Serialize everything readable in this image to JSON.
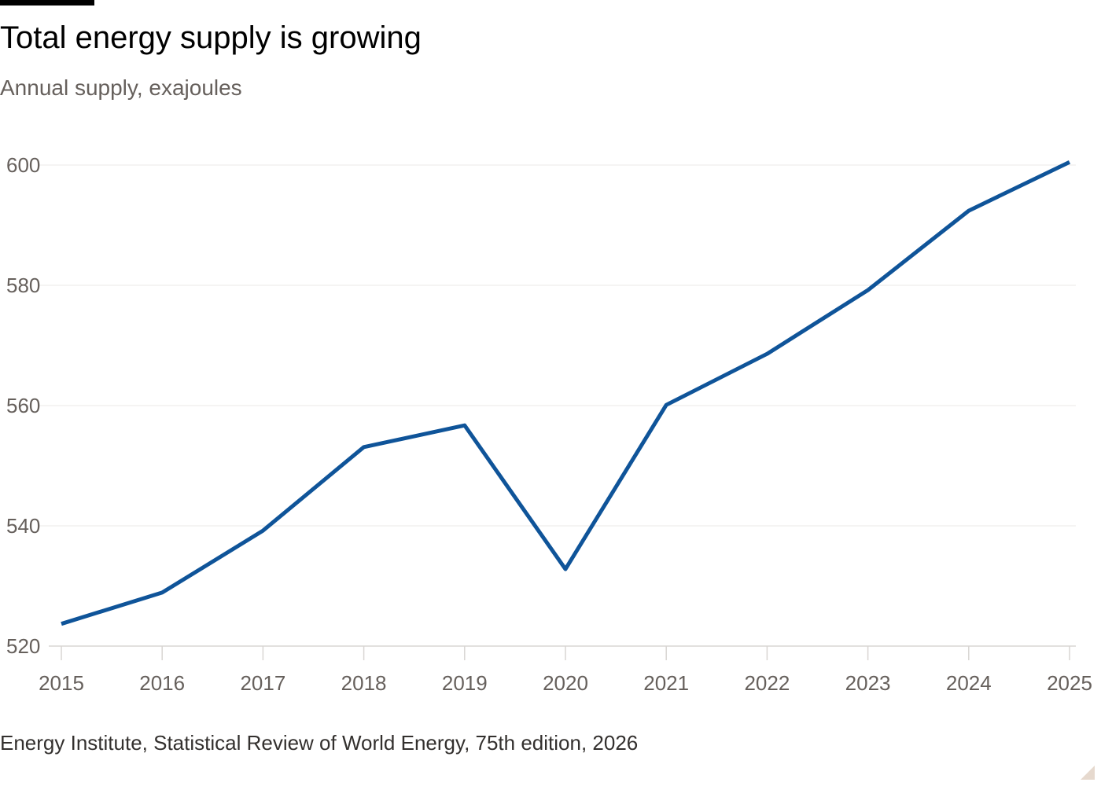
{
  "chart_data": {
    "type": "line",
    "title": "Total energy supply is growing",
    "subtitle": "Annual supply, exajoules",
    "xlabel": "",
    "ylabel": "",
    "x": [
      2015,
      2016,
      2017,
      2018,
      2019,
      2020,
      2021,
      2022,
      2023,
      2024,
      2025
    ],
    "x_tick_labels": [
      "2015",
      "2016",
      "2017",
      "2018",
      "2019",
      "2020",
      "2021",
      "2022",
      "2023",
      "2024",
      "2025"
    ],
    "y_tick_labels": [
      "520",
      "540",
      "560",
      "580",
      "600"
    ],
    "yticks": [
      520,
      540,
      560,
      580,
      600
    ],
    "ylim": [
      520,
      600
    ],
    "xlim": [
      2015,
      2025
    ],
    "grid": "horizontal",
    "legend": "none",
    "series": [
      {
        "values": [
          523.7,
          528.9,
          539.2,
          553.1,
          556.7,
          532.8,
          560.1,
          568.6,
          579.2,
          592.4,
          600.5
        ],
        "color": "#0f5499"
      }
    ],
    "source": "Energy Institute, Statistical Review of World Energy, 75th edition, 2026"
  },
  "colors": {
    "line": "#0f5499",
    "grid": "#ebe9e7",
    "axis": "#d9d6d3",
    "tick_text": "#66605c",
    "title": "#000000",
    "source": "#33302e"
  }
}
